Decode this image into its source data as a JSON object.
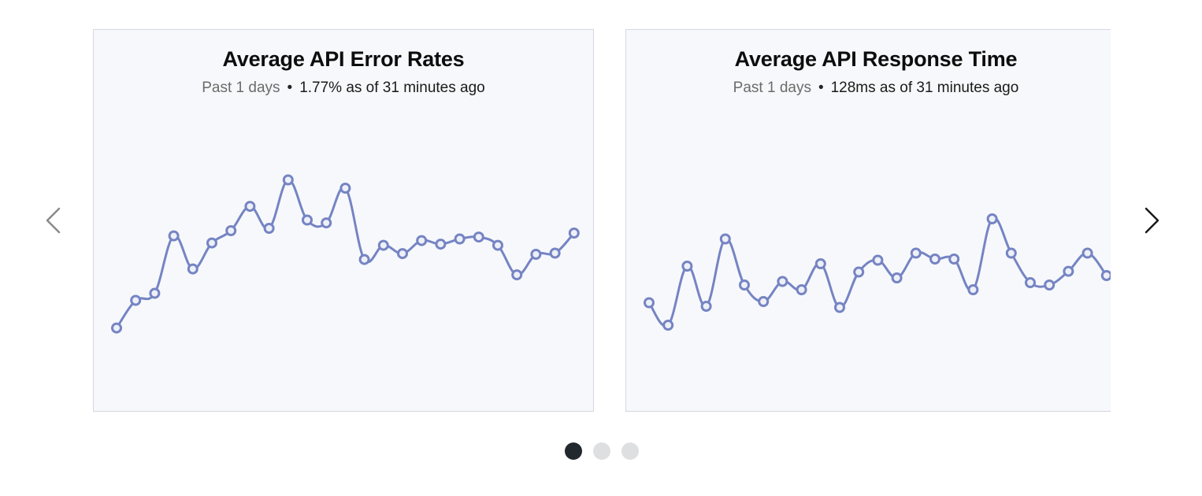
{
  "carousel": {
    "cards": [
      {
        "title": "Average API Error Rates",
        "period": "Past 1 days",
        "separator": "•",
        "status": "1.77% as of 31 minutes ago",
        "chart_data": {
          "type": "line",
          "series_color": "#7584c3",
          "values": [
            23.8,
            35.5,
            38.5,
            62.8,
            48.8,
            59.8,
            65.0,
            75.3,
            66.0,
            86.5,
            69.5,
            68.3,
            83.0,
            52.8,
            58.8,
            55.3,
            60.8,
            59.3,
            61.5,
            62.3,
            58.8,
            46.3,
            55.0,
            55.5,
            64.0
          ]
        }
      },
      {
        "title": "Average API Response Time",
        "period": "Past 1 days",
        "separator": "•",
        "status": "128ms as of 31 minutes ago",
        "chart_data": {
          "type": "line",
          "series_color": "#7584c3",
          "values": [
            34.5,
            25.0,
            50.0,
            33.0,
            61.5,
            42.0,
            35.0,
            43.5,
            40.0,
            51.0,
            32.5,
            47.5,
            52.5,
            45.0,
            55.5,
            53.0,
            53.0,
            40.0,
            70.0,
            55.5,
            43.0,
            42.0,
            47.8,
            55.5,
            46.0
          ]
        }
      }
    ],
    "pagination": {
      "count": 3,
      "active_index": 0
    },
    "prev_icon": "chevron-left-icon",
    "next_icon": "chevron-right-icon"
  }
}
